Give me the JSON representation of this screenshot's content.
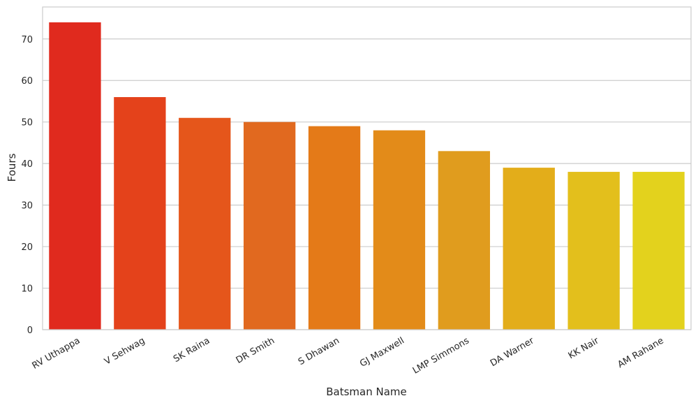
{
  "chart_data": {
    "type": "bar",
    "categories": [
      "RV Uthappa",
      "V Sehwag",
      "SK Raina",
      "DR Smith",
      "S Dhawan",
      "GJ Maxwell",
      "LMP Simmons",
      "DA Warner",
      "KK Nair",
      "AM Rahane"
    ],
    "values": [
      74,
      56,
      51,
      50,
      49,
      48,
      43,
      39,
      38,
      38
    ],
    "xlabel": "Batsman Name",
    "ylabel": "Fours",
    "ylim": [
      0,
      77.7
    ],
    "yticks": [
      0,
      10,
      20,
      30,
      40,
      50,
      60,
      70
    ],
    "grid": "horizontal",
    "colors": [
      "#e02a1e",
      "#e4421b",
      "#e5561b",
      "#e1691f",
      "#e47a18",
      "#e38b19",
      "#e09c1e",
      "#e3ad1a",
      "#e3bf1c",
      "#e3d21d"
    ],
    "background": "#ffffff",
    "grid_color": "#cccccc",
    "spine_color": "#cccccc"
  }
}
